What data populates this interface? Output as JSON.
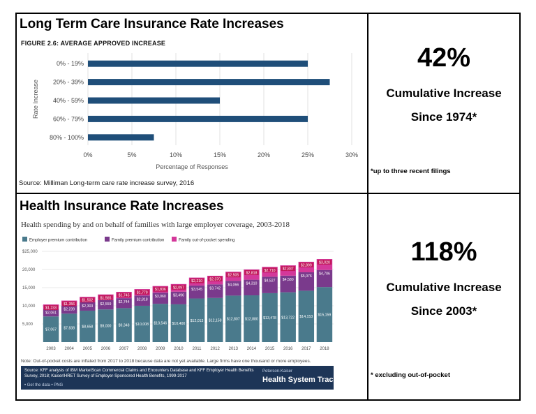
{
  "ltc": {
    "section_title": "Long Term Care Insurance Rate Increases",
    "figure_title": "FIGURE 2.6: AVERAGE APPROVED INCREASE",
    "source": "Source: Milliman Long-term care rate increase survey, 2016",
    "big_percent": "42%",
    "line1": "Cumulative Increase",
    "line2": "Since 1974*",
    "footnote": "*up to three recent filings"
  },
  "health": {
    "section_title": "Health Insurance Rate Increases",
    "chart_title": "Health spending by and on behalf of families with large employer coverage, 2003-2018",
    "note": "Note: Out-of-pocket costs are inflated from 2017 to 2018 because data are not yet available. Large firms have one thousand or more employees.",
    "source_text": "Source: KFF analysis of IBM MarketScan Commercial Claims and Encounters Database and KFF Employer Health Benefits Survey, 2018; Kaiser/HRET Survey of Employer-Sponsored Health Benefits, 1999-2017",
    "links": "• Get the data • PNG",
    "brand_small": "Peterson-Kaiser",
    "brand": "Health System Tracker",
    "big_percent": "118%",
    "line1": "Cumulative Increase",
    "line2": "Since 2003*",
    "footnote": "* excluding out-of-pocket"
  },
  "colors": {
    "ltc_bar": "#1f4e79",
    "employer": "#4a7a8c",
    "family_premium": "#7a3a8c",
    "out_of_pocket": "#d4389a",
    "label_box": "#c2185b"
  },
  "chart_data": [
    {
      "type": "bar",
      "orientation": "horizontal",
      "title": "FIGURE 2.6: AVERAGE APPROVED INCREASE",
      "categories": [
        "0% - 19%",
        "20% - 39%",
        "40% - 59%",
        "60% - 79%",
        "80% - 100%"
      ],
      "values": [
        25,
        27.5,
        15,
        25,
        7.5
      ],
      "xlabel": "Percentage of Responses",
      "ylabel": "Rate Increase",
      "xlim": [
        0,
        30
      ],
      "xticks": [
        "0%",
        "5%",
        "10%",
        "15%",
        "20%",
        "25%",
        "30%"
      ],
      "grid": "vertical"
    },
    {
      "type": "bar",
      "stacked": true,
      "title": "Health spending by and on behalf of families with large employer coverage, 2003-2018",
      "categories": [
        "2003",
        "2004",
        "2005",
        "2006",
        "2007",
        "2008",
        "2009",
        "2010",
        "2011",
        "2012",
        "2013",
        "2014",
        "2015",
        "2016",
        "2017",
        "2018"
      ],
      "series": [
        {
          "name": "Employer premium contribution",
          "values": [
            7067,
            7838,
            8658,
            9000,
            9348,
            10008,
            10546,
            10400,
            12013,
            12158,
            12807,
            12880,
            13478,
            13722,
            14153,
            15159
          ]
        },
        {
          "name": "Family premium contribution",
          "values": [
            2061,
            2239,
            2303,
            2559,
            2744,
            2818,
            3060,
            3496,
            3545,
            3742,
            4066,
            4310,
            4527,
            4580,
            5076,
            4706
          ]
        },
        {
          "name": "Family out-of-pocket spending",
          "values": [
            1233,
            1356,
            1502,
            1565,
            1745,
            1779,
            1836,
            2097,
            2210,
            2370,
            2505,
            2818,
            2710,
            2837,
            2899,
            3020
          ]
        }
      ],
      "labels": {
        "employer": [
          "$7,067",
          "$7,838",
          "$8,658",
          "$9,000",
          "$9,348",
          "$10,008",
          "$10,546",
          "$10,400",
          "$12,013",
          "$12,158",
          "$12,807",
          "$12,880",
          "$13,478",
          "$13,722",
          "$14,153",
          "$15,159"
        ],
        "family_premium": [
          "$2,061",
          "$2,239",
          "$2,303",
          "$2,559",
          "$2,744",
          "$2,818",
          "$3,060",
          "$3,496",
          "$3,545",
          "$3,742",
          "$4,066",
          "$4,310",
          "$4,527",
          "$4,580",
          "$5,076",
          "$4,706"
        ],
        "out_of_pocket": [
          "$1,233",
          "$1,356",
          "$1,502",
          "$1,565",
          "$1,745",
          "$1,779",
          "$1,836",
          "$2,097",
          "$2,210",
          "$2,370",
          "$2,505",
          "$2,818",
          "$2,710",
          "$2,837",
          "$2,899",
          "$3,020"
        ]
      },
      "ylim": [
        0,
        25000
      ],
      "yticks": [
        "5,000",
        "10,000",
        "15,000",
        "20,000",
        "$25,000"
      ],
      "ytick_values": [
        5000,
        10000,
        15000,
        20000,
        25000
      ],
      "legend_position": "top-left",
      "grid": "horizontal"
    }
  ]
}
